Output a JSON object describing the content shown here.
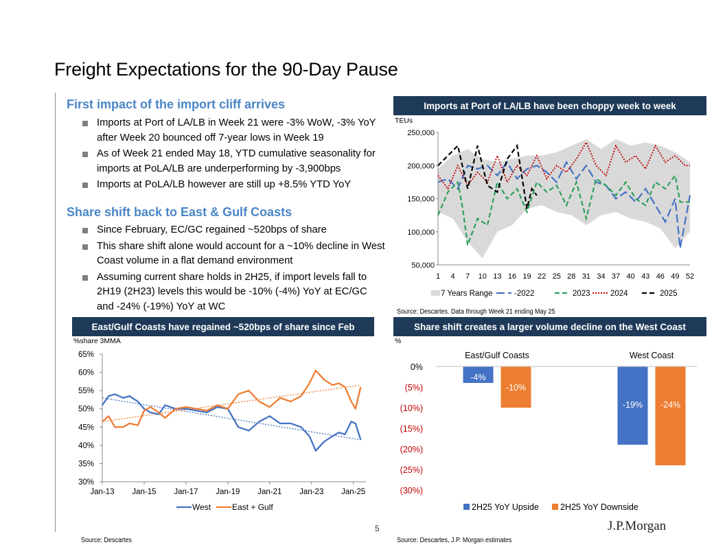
{
  "page": {
    "title": "Freight Expectations for the 90-Day Pause",
    "page_number": "5",
    "logo_text": "J.P.Morgan"
  },
  "left": {
    "section1_title": "First impact of the import cliff arrives",
    "section1_bullets": [
      "Imports at Port of LA/LB in Week 21 were -3% WoW, -3% YoY after Week 20 bounced off 7-year lows in Week 19",
      "As of Week 21 ended May 18, YTD cumulative seasonality for imports at PoLA/LB are underperforming by -3,900bps",
      "Imports at PoLA/LB however are still up +8.5% YTD YoY"
    ],
    "section2_title": "Share shift back to East & Gulf Coasts",
    "section2_bullets": [
      "Since February, EC/GC regained ~520bps of share",
      "This share shift alone would account for a ~10% decline in West Coast volume in a flat demand environment",
      "Assuming current share holds in 2H25, if import levels fall to 2H19 (2H23) levels this would be -10% (-4%) YoY at EC/GC and -24% (-19%) YoY at WC"
    ]
  },
  "chart1": {
    "header": "Imports at Port of LA/LB have been choppy week to week",
    "unit": "TEUs",
    "source": "Source: Descartes. Data through Week 21 ending May 25"
  },
  "chart2": {
    "header": "East/Gulf Coasts have regained ~520bps of share since Feb",
    "unit": "%share 3MMA",
    "source": "Source: Descartes"
  },
  "chart3": {
    "header": "Share shift creates a larger volume decline on the West Coast",
    "unit": "%",
    "source": "Source: Descartes, J.P. Morgan estimates"
  },
  "chart_data": [
    {
      "type": "line",
      "title": "Imports at Port of LA/LB have been choppy week to week",
      "ylabel": "TEUs",
      "ylim": [
        50000,
        250000
      ],
      "yticks": [
        50000,
        100000,
        150000,
        200000,
        250000
      ],
      "ytick_labels": [
        "50,000",
        "100,000",
        "150,000",
        "200,000",
        "250,000"
      ],
      "xticks": [
        1,
        4,
        7,
        10,
        13,
        16,
        19,
        22,
        25,
        28,
        31,
        34,
        37,
        40,
        43,
        46,
        49,
        52
      ],
      "xlim": [
        1,
        52
      ],
      "legend": [
        "7 Years Range",
        "2022",
        "2023",
        "2024",
        "2025"
      ],
      "range_7yr": {
        "x": [
          1,
          4,
          7,
          10,
          13,
          16,
          19,
          22,
          25,
          28,
          31,
          34,
          37,
          40,
          43,
          46,
          49,
          52
        ],
        "low": [
          130000,
          120000,
          85000,
          60000,
          100000,
          110000,
          135000,
          140000,
          130000,
          125000,
          110000,
          125000,
          130000,
          120000,
          115000,
          105000,
          75000,
          100000
        ],
        "high": [
          195000,
          215000,
          225000,
          210000,
          205000,
          210000,
          215000,
          215000,
          220000,
          230000,
          240000,
          225000,
          240000,
          230000,
          235000,
          230000,
          220000,
          205000
        ]
      },
      "series": [
        {
          "name": "2022",
          "color": "#4472c4",
          "style": "long-dash",
          "x": [
            1,
            3,
            5,
            7,
            9,
            11,
            13,
            15,
            17,
            19,
            21,
            23,
            25,
            27,
            29,
            31,
            33,
            35,
            37,
            39,
            41,
            43,
            45,
            47,
            49,
            50,
            52
          ],
          "values": [
            175000,
            180000,
            165000,
            200000,
            195000,
            200000,
            185000,
            205000,
            180000,
            195000,
            200000,
            190000,
            175000,
            205000,
            180000,
            200000,
            175000,
            170000,
            150000,
            160000,
            145000,
            165000,
            140000,
            115000,
            150000,
            75000,
            155000
          ]
        },
        {
          "name": "2023",
          "color": "#2ca05a",
          "style": "dash",
          "x": [
            1,
            3,
            5,
            6,
            7,
            9,
            11,
            13,
            15,
            17,
            19,
            21,
            23,
            25,
            27,
            29,
            31,
            33,
            35,
            37,
            39,
            41,
            43,
            45,
            47,
            49,
            50,
            52
          ],
          "values": [
            125000,
            160000,
            175000,
            135000,
            80000,
            120000,
            110000,
            175000,
            150000,
            165000,
            130000,
            175000,
            160000,
            170000,
            140000,
            175000,
            120000,
            180000,
            170000,
            155000,
            175000,
            150000,
            140000,
            175000,
            165000,
            185000,
            145000,
            145000
          ]
        },
        {
          "name": "2024",
          "color": "#c00000",
          "style": "dotted",
          "x": [
            1,
            3,
            5,
            7,
            9,
            11,
            13,
            15,
            17,
            19,
            21,
            23,
            25,
            27,
            29,
            31,
            33,
            35,
            37,
            39,
            41,
            43,
            45,
            47,
            49,
            51,
            52
          ],
          "values": [
            185000,
            165000,
            200000,
            170000,
            190000,
            175000,
            215000,
            175000,
            200000,
            185000,
            215000,
            180000,
            200000,
            190000,
            210000,
            235000,
            200000,
            185000,
            230000,
            205000,
            215000,
            195000,
            230000,
            205000,
            215000,
            200000,
            200000
          ]
        },
        {
          "name": "2025",
          "color": "#000000",
          "style": "dash",
          "x": [
            1,
            3,
            5,
            7,
            9,
            11,
            13,
            15,
            17,
            19,
            20,
            21
          ],
          "values": [
            200000,
            215000,
            230000,
            165000,
            230000,
            170000,
            160000,
            210000,
            230000,
            135000,
            165000,
            155000
          ]
        }
      ]
    },
    {
      "type": "line",
      "title": "East/Gulf Coasts have regained ~520bps of share since Feb",
      "ylabel": "%share 3MMA",
      "ylim": [
        30,
        65
      ],
      "yticks": [
        30,
        35,
        40,
        45,
        50,
        55,
        60,
        65
      ],
      "ytick_labels": [
        "30%",
        "35%",
        "40%",
        "45%",
        "50%",
        "55%",
        "60%",
        "65%"
      ],
      "xlim": [
        2013.0,
        2025.6
      ],
      "xtick_labels": [
        "Jan-13",
        "Jan-15",
        "Jan-17",
        "Jan-19",
        "Jan-21",
        "Jan-23",
        "Jan-25"
      ],
      "xticks": [
        2013,
        2015,
        2017,
        2019,
        2021,
        2023,
        2025
      ],
      "legend": [
        "West",
        "East + Gulf"
      ],
      "series": [
        {
          "name": "West",
          "color": "#4472c4",
          "x": [
            2013.0,
            2013.3,
            2013.6,
            2014.0,
            2014.3,
            2014.7,
            2015.0,
            2015.3,
            2015.7,
            2016.0,
            2016.5,
            2017.0,
            2017.5,
            2018.0,
            2018.5,
            2019.0,
            2019.5,
            2020.0,
            2020.5,
            2021.0,
            2021.5,
            2022.0,
            2022.5,
            2022.9,
            2023.2,
            2023.6,
            2024.0,
            2024.3,
            2024.6,
            2024.9,
            2025.1,
            2025.35
          ],
          "values": [
            51,
            53.5,
            54,
            53,
            53.5,
            52,
            50,
            49,
            48.5,
            51,
            50,
            50,
            49.5,
            49,
            50.5,
            50,
            45,
            44,
            46.5,
            48,
            46,
            46,
            45,
            42.5,
            38.5,
            41,
            42.5,
            43.5,
            43,
            46.5,
            46,
            41.5
          ]
        },
        {
          "name": "East + Gulf",
          "color": "#ed7d31",
          "x": [
            2013.0,
            2013.3,
            2013.6,
            2014.0,
            2014.3,
            2014.7,
            2015.0,
            2015.3,
            2015.7,
            2016.0,
            2016.5,
            2017.0,
            2017.5,
            2018.0,
            2018.5,
            2019.0,
            2019.5,
            2020.0,
            2020.5,
            2021.0,
            2021.5,
            2022.0,
            2022.5,
            2022.9,
            2023.2,
            2023.6,
            2024.0,
            2024.3,
            2024.6,
            2024.9,
            2025.1,
            2025.35
          ],
          "values": [
            46.5,
            48,
            45,
            45,
            46,
            45.5,
            49.5,
            50.5,
            49,
            47.5,
            50,
            50.5,
            50,
            49.5,
            51,
            50,
            54,
            55,
            52,
            50.5,
            53,
            52,
            53.5,
            57,
            60.5,
            58,
            56.5,
            57,
            56,
            52,
            50,
            56
          ]
        }
      ],
      "trendlines": [
        {
          "name": "West trend",
          "color": "#4472c4",
          "x": [
            2013.0,
            2025.35
          ],
          "values": [
            53,
            41.5
          ]
        },
        {
          "name": "East + Gulf trend",
          "color": "#ed7d31",
          "x": [
            2013.0,
            2025.35
          ],
          "values": [
            46.5,
            56.5
          ]
        }
      ]
    },
    {
      "type": "bar",
      "title": "Share shift creates a larger volume decline on the West Coast",
      "ylabel": "%",
      "ylim": [
        -30,
        0
      ],
      "yticks": [
        0,
        -5,
        -10,
        -15,
        -20,
        -25,
        -30
      ],
      "ytick_labels": [
        "0%",
        "(5%)",
        "(10%)",
        "(15%)",
        "(20%)",
        "(25%)",
        "(30%)"
      ],
      "categories": [
        "East/Gulf Coasts",
        "West Coast"
      ],
      "series": [
        {
          "name": "2H25 YoY Upside",
          "color": "#4472c4",
          "values": [
            -4,
            -19
          ],
          "labels": [
            "-4%",
            "-19%"
          ]
        },
        {
          "name": "2H25 YoY Downside",
          "color": "#ed7d31",
          "values": [
            -10,
            -24
          ],
          "labels": [
            "-10%",
            "-24%"
          ]
        }
      ]
    }
  ]
}
